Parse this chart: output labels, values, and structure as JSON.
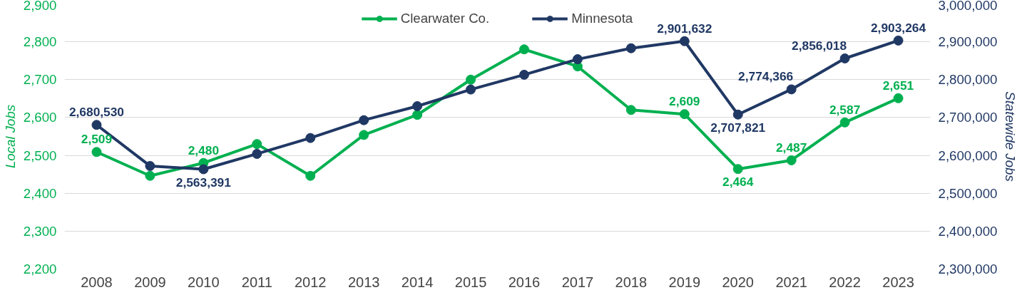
{
  "chart_data": {
    "type": "line",
    "categories": [
      "2008",
      "2009",
      "2010",
      "2011",
      "2012",
      "2013",
      "2014",
      "2015",
      "2016",
      "2017",
      "2018",
      "2019",
      "2020",
      "2021",
      "2022",
      "2023"
    ],
    "series": [
      {
        "name": "Clearwater Co.",
        "color": "#00b050",
        "values": [
          2509,
          2446,
          2480,
          2530,
          2446,
          2554,
          2607,
          2700,
          2780,
          2735,
          2620,
          2609,
          2464,
          2487,
          2587,
          2651
        ],
        "value_labels": [
          "2,509",
          null,
          "2,480",
          null,
          null,
          null,
          null,
          null,
          null,
          null,
          null,
          "2,609",
          "2,464",
          "2,487",
          "2,587",
          "2,651"
        ]
      },
      {
        "name": "Minnesota",
        "color": "#203864",
        "axis": "y2",
        "values": [
          2680530,
          2572000,
          2563391,
          2604000,
          2646000,
          2693000,
          2730000,
          2774000,
          2813000,
          2854000,
          2883000,
          2901632,
          2707821,
          2774366,
          2856018,
          2903264
        ],
        "value_labels": [
          "2,680,530",
          null,
          "2,563,391",
          null,
          null,
          null,
          null,
          null,
          null,
          null,
          null,
          "2,901,632",
          "2,707,821",
          "2,774,366",
          "2,856,018",
          "2,903,264"
        ]
      }
    ],
    "ylabel": "Local Jobs",
    "y2label": "Statewide Jobs",
    "ylim": [
      2200,
      2900
    ],
    "yticks": [
      {
        "value": 2200,
        "label": "2,200"
      },
      {
        "value": 2300,
        "label": "2,300"
      },
      {
        "value": 2400,
        "label": "2,400"
      },
      {
        "value": 2500,
        "label": "2,500"
      },
      {
        "value": 2600,
        "label": "2,600"
      },
      {
        "value": 2700,
        "label": "2,700"
      },
      {
        "value": 2800,
        "label": "2,800"
      },
      {
        "value": 2900,
        "label": "2,900"
      }
    ],
    "y2lim": [
      2300000,
      3000000
    ],
    "y2ticks": [
      {
        "value": 2300000,
        "label": "2,300,000"
      },
      {
        "value": 2400000,
        "label": "2,400,000"
      },
      {
        "value": 2500000,
        "label": "2,500,000"
      },
      {
        "value": 2600000,
        "label": "2,600,000"
      },
      {
        "value": 2700000,
        "label": "2,700,000"
      },
      {
        "value": 2800000,
        "label": "2,800,000"
      },
      {
        "value": 2900000,
        "label": "2,900,000"
      },
      {
        "value": 3000000,
        "label": "3,000,000"
      }
    ],
    "grid": "y",
    "legend": "top",
    "marker": "circle",
    "line_style": "solid"
  }
}
